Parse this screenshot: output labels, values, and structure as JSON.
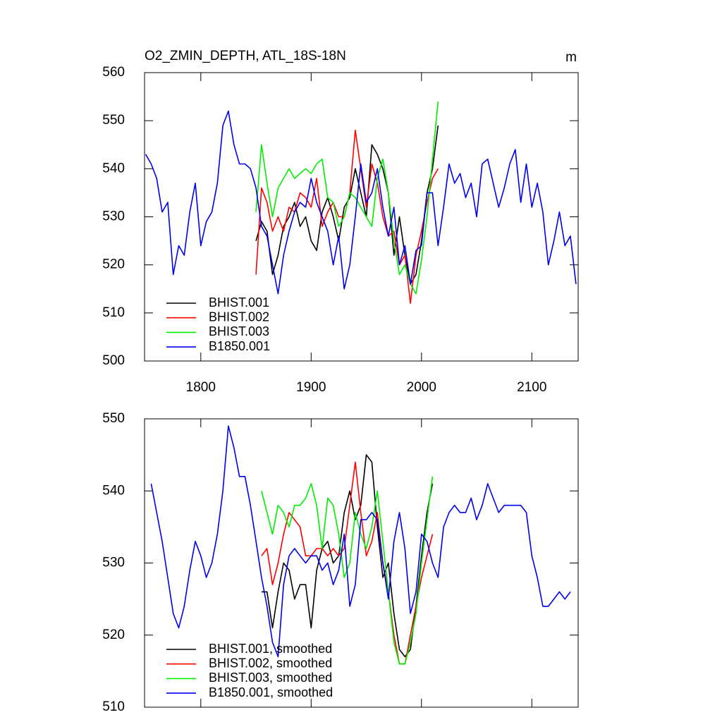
{
  "chart_data": [
    {
      "type": "line",
      "title": "O2_ZMIN_DEPTH, ATL_18S-18N",
      "units": "m",
      "xlim": [
        1749,
        2142
      ],
      "ylim": [
        500,
        560
      ],
      "xticks": [
        1800,
        1900,
        2000,
        2100
      ],
      "show_xtick_labels": true,
      "yticks": [
        500,
        510,
        520,
        530,
        540,
        550,
        560
      ],
      "legend": "lower left",
      "series": [
        {
          "name": "BHIST.001",
          "color": "#000000",
          "x": [
            1850,
            1855,
            1860,
            1865,
            1870,
            1875,
            1880,
            1885,
            1890,
            1895,
            1900,
            1905,
            1910,
            1915,
            1920,
            1925,
            1930,
            1935,
            1940,
            1945,
            1950,
            1955,
            1960,
            1965,
            1970,
            1975,
            1980,
            1985,
            1990,
            1995,
            2000,
            2005,
            2010,
            2015
          ],
          "values": [
            525,
            529,
            527,
            518,
            522,
            528,
            530,
            533,
            528,
            530,
            525,
            523,
            531,
            534,
            530,
            525,
            532,
            534,
            540,
            535,
            530,
            545,
            543,
            540,
            535,
            522,
            530,
            522,
            516,
            518,
            525,
            535,
            540,
            549
          ]
        },
        {
          "name": "BHIST.002",
          "color": "#ff0000",
          "x": [
            1850,
            1855,
            1860,
            1865,
            1870,
            1875,
            1880,
            1885,
            1890,
            1895,
            1900,
            1905,
            1910,
            1915,
            1920,
            1925,
            1930,
            1935,
            1940,
            1945,
            1950,
            1955,
            1960,
            1965,
            1970,
            1975,
            1980,
            1985,
            1990,
            1995,
            2000,
            2005,
            2010,
            2015
          ],
          "values": [
            518,
            536,
            533,
            527,
            530,
            527,
            532,
            531,
            535,
            534,
            532,
            538,
            528,
            531,
            533,
            530,
            530,
            535,
            548,
            540,
            532,
            541,
            537,
            530,
            526,
            527,
            520,
            522,
            512,
            522,
            527,
            533,
            538,
            540
          ]
        },
        {
          "name": "BHIST.003",
          "color": "#00ee00",
          "x": [
            1850,
            1855,
            1860,
            1865,
            1870,
            1875,
            1880,
            1885,
            1890,
            1895,
            1900,
            1905,
            1910,
            1915,
            1920,
            1925,
            1930,
            1935,
            1940,
            1945,
            1950,
            1955,
            1960,
            1965,
            1970,
            1975,
            1980,
            1985,
            1990,
            1995,
            2000,
            2005,
            2010,
            2015
          ],
          "values": [
            531,
            545,
            537,
            530,
            536,
            538,
            540,
            538,
            539,
            540,
            539,
            541,
            542,
            534,
            533,
            528,
            530,
            535,
            534,
            532,
            530,
            528,
            538,
            542,
            535,
            525,
            518,
            520,
            516,
            514,
            521,
            530,
            542,
            554
          ]
        },
        {
          "name": "B1850.001",
          "color": "#0000ee",
          "x": [
            1750,
            1755,
            1760,
            1765,
            1770,
            1775,
            1780,
            1785,
            1790,
            1795,
            1800,
            1805,
            1810,
            1815,
            1820,
            1825,
            1830,
            1835,
            1840,
            1845,
            1850,
            1855,
            1860,
            1865,
            1870,
            1875,
            1880,
            1885,
            1890,
            1895,
            1900,
            1905,
            1910,
            1915,
            1920,
            1925,
            1930,
            1935,
            1940,
            1945,
            1950,
            1955,
            1960,
            1965,
            1970,
            1975,
            1980,
            1985,
            1990,
            1995,
            2000,
            2005,
            2010,
            2015,
            2020,
            2025,
            2030,
            2035,
            2040,
            2045,
            2050,
            2055,
            2060,
            2065,
            2070,
            2075,
            2080,
            2085,
            2090,
            2095,
            2100,
            2105,
            2110,
            2115,
            2120,
            2125,
            2130,
            2135,
            2140
          ],
          "values": [
            543,
            541,
            538,
            531,
            533,
            518,
            524,
            522,
            531,
            537,
            524,
            529,
            531,
            537,
            549,
            552,
            545,
            541,
            541,
            540,
            536,
            528,
            526,
            520,
            514,
            522,
            527,
            531,
            533,
            532,
            538,
            533,
            530,
            527,
            520,
            526,
            515,
            520,
            530,
            541,
            533,
            535,
            540,
            532,
            526,
            532,
            520,
            524,
            516,
            523,
            524,
            535,
            535,
            524,
            532,
            541,
            537,
            539,
            534,
            537,
            530,
            541,
            542,
            537,
            532,
            536,
            541,
            544,
            533,
            541,
            532,
            537,
            531,
            520,
            525,
            531,
            524,
            526,
            516
          ]
        }
      ]
    },
    {
      "type": "line",
      "xlim": [
        1749,
        2142
      ],
      "ylim": [
        510,
        550
      ],
      "xticks": [
        1800,
        1900,
        2000,
        2100
      ],
      "show_xtick_labels": false,
      "yticks": [
        510,
        520,
        530,
        540,
        550
      ],
      "legend": "lower left",
      "series": [
        {
          "name": "BHIST.001, smoothed",
          "color": "#000000",
          "x": [
            1855,
            1860,
            1865,
            1870,
            1875,
            1880,
            1885,
            1890,
            1895,
            1900,
            1905,
            1910,
            1915,
            1920,
            1925,
            1930,
            1935,
            1940,
            1945,
            1950,
            1955,
            1960,
            1965,
            1970,
            1975,
            1980,
            1985,
            1990,
            1995,
            2000,
            2005,
            2010
          ],
          "values": [
            526,
            526,
            521,
            526,
            530,
            529,
            525,
            527,
            527,
            521,
            529,
            532,
            533,
            530,
            531,
            537,
            540,
            536,
            538,
            545,
            544,
            535,
            528,
            530,
            523,
            518,
            517,
            518,
            524,
            531,
            537,
            541
          ]
        },
        {
          "name": "BHIST.002, smoothed",
          "color": "#ff0000",
          "x": [
            1855,
            1860,
            1865,
            1870,
            1875,
            1880,
            1885,
            1890,
            1895,
            1900,
            1905,
            1910,
            1915,
            1920,
            1925,
            1930,
            1935,
            1940,
            1945,
            1950,
            1955,
            1960,
            1965,
            1970,
            1975,
            1980,
            1985,
            1990,
            1995,
            2000,
            2005,
            2010
          ],
          "values": [
            531,
            532,
            527,
            530,
            534,
            537,
            536,
            535,
            531,
            531,
            532,
            532,
            531,
            532,
            531,
            532,
            538,
            544,
            537,
            531,
            533,
            537,
            530,
            526,
            520,
            516,
            516,
            520,
            524,
            528,
            531,
            534
          ]
        },
        {
          "name": "BHIST.003, smoothed",
          "color": "#00ee00",
          "x": [
            1855,
            1860,
            1865,
            1870,
            1875,
            1880,
            1885,
            1890,
            1895,
            1900,
            1905,
            1910,
            1915,
            1920,
            1925,
            1930,
            1935,
            1940,
            1945,
            1950,
            1955,
            1960,
            1965,
            1970,
            1975,
            1980,
            1985,
            1990,
            1995,
            2000,
            2005,
            2010
          ],
          "values": [
            540,
            537,
            534,
            538,
            537,
            535,
            538,
            538,
            539,
            541,
            538,
            532,
            539,
            538,
            534,
            528,
            530,
            537,
            534,
            532,
            535,
            540,
            533,
            526,
            519,
            516,
            516,
            519,
            523,
            530,
            536,
            542
          ]
        },
        {
          "name": "B1850.001, smoothed",
          "color": "#0000ee",
          "x": [
            1755,
            1760,
            1765,
            1770,
            1775,
            1780,
            1785,
            1790,
            1795,
            1800,
            1805,
            1810,
            1815,
            1820,
            1825,
            1830,
            1835,
            1840,
            1845,
            1850,
            1855,
            1860,
            1865,
            1870,
            1875,
            1880,
            1885,
            1890,
            1895,
            1900,
            1905,
            1910,
            1915,
            1920,
            1925,
            1930,
            1935,
            1940,
            1945,
            1950,
            1955,
            1960,
            1965,
            1970,
            1975,
            1980,
            1985,
            1990,
            1995,
            2000,
            2005,
            2010,
            2015,
            2020,
            2025,
            2030,
            2035,
            2040,
            2045,
            2050,
            2055,
            2060,
            2065,
            2070,
            2075,
            2080,
            2085,
            2090,
            2095,
            2100,
            2105,
            2110,
            2115,
            2120,
            2125,
            2130,
            2135
          ],
          "values": [
            541,
            537,
            533,
            528,
            523,
            521,
            524,
            529,
            533,
            531,
            528,
            530,
            534,
            540,
            549,
            546,
            542,
            542,
            538,
            533,
            528,
            524,
            519,
            517,
            527,
            531,
            532,
            531,
            530,
            531,
            531,
            529,
            530,
            527,
            529,
            534,
            524,
            527,
            536,
            536,
            537,
            536,
            530,
            525,
            533,
            537,
            532,
            523,
            526,
            534,
            533,
            530,
            528,
            535,
            537,
            538,
            537,
            537,
            539,
            536,
            538,
            541,
            539,
            537,
            538,
            538,
            538,
            538,
            537,
            531,
            528,
            524,
            524,
            525,
            526,
            525,
            526
          ]
        }
      ]
    }
  ]
}
